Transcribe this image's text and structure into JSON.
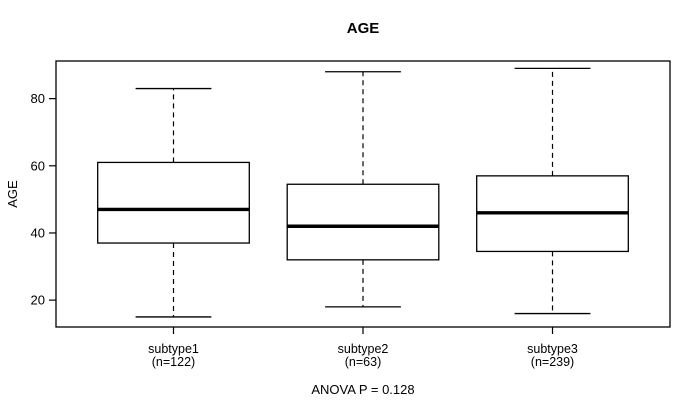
{
  "chart_data": {
    "type": "boxplot",
    "title": "AGE",
    "ylabel": "AGE",
    "xlabel": "",
    "footer": "ANOVA P = 0.128",
    "ylim": [
      12,
      91.2
    ],
    "yticks": [
      20,
      40,
      60,
      80
    ],
    "grid": false,
    "categories": [
      "subtype1",
      "subtype2",
      "subtype3"
    ],
    "series": [
      {
        "name": "subtype1",
        "n_label": "(n=122)",
        "n": 122,
        "whisker_low": 15,
        "q1": 37,
        "median": 47,
        "q3": 61,
        "whisker_high": 83
      },
      {
        "name": "subtype2",
        "n_label": "(n=63)",
        "n": 63,
        "whisker_low": 18,
        "q1": 32,
        "median": 42,
        "q3": 54.5,
        "whisker_high": 88
      },
      {
        "name": "subtype3",
        "n_label": "(n=239)",
        "n": 239,
        "whisker_low": 16,
        "q1": 34.5,
        "median": 46,
        "q3": 57,
        "whisker_high": 89
      }
    ],
    "colors": {
      "line": "#000000",
      "box_fill": "#ffffff",
      "background": "#ffffff"
    }
  }
}
